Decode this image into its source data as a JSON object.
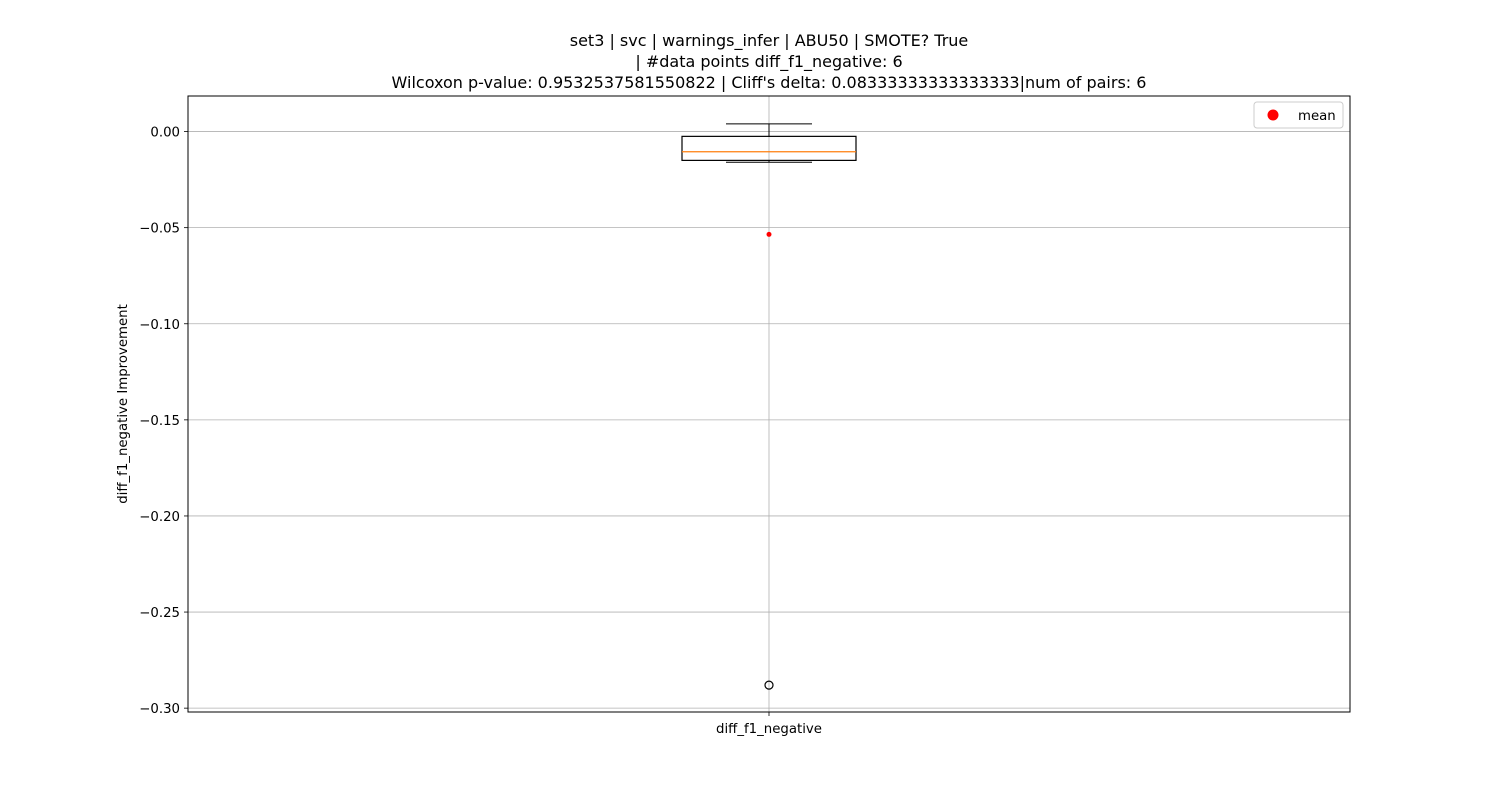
{
  "chart_data": {
    "type": "box",
    "title_lines": [
      "set3 | svc | warnings_infer | ABU50 | SMOTE? True",
      "| #data points diff_f1_negative: 6",
      "Wilcoxon p-value: 0.9532537581550822 | Cliff's delta: 0.08333333333333333|num of pairs: 6"
    ],
    "xlabel": "",
    "ylabel": "diff_f1_negative Improvement",
    "categories": [
      "diff_f1_negative"
    ],
    "ylim": [
      -0.302,
      0.0185
    ],
    "yticks": [
      0.0,
      -0.05,
      -0.1,
      -0.15,
      -0.2,
      -0.25,
      -0.3
    ],
    "ytick_labels": [
      "0.00",
      "−0.05",
      "−0.10",
      "−0.15",
      "−0.20",
      "−0.25",
      "−0.30"
    ],
    "grid": true,
    "legend": {
      "placement": "top-right",
      "entries": [
        {
          "label": "mean",
          "marker": "circle",
          "color": "#ff0000"
        }
      ]
    },
    "boxes": [
      {
        "name": "diff_f1_negative",
        "whisker_high": 0.004,
        "q3": -0.0025,
        "median": -0.0105,
        "q1": -0.015,
        "whisker_low": -0.016,
        "mean": -0.0535,
        "fliers": [
          -0.288
        ]
      }
    ],
    "colors": {
      "box_edge": "#000000",
      "median_line": "#ff7f0e",
      "mean_marker": "#ff0000",
      "grid": "#b0b0b0"
    }
  }
}
